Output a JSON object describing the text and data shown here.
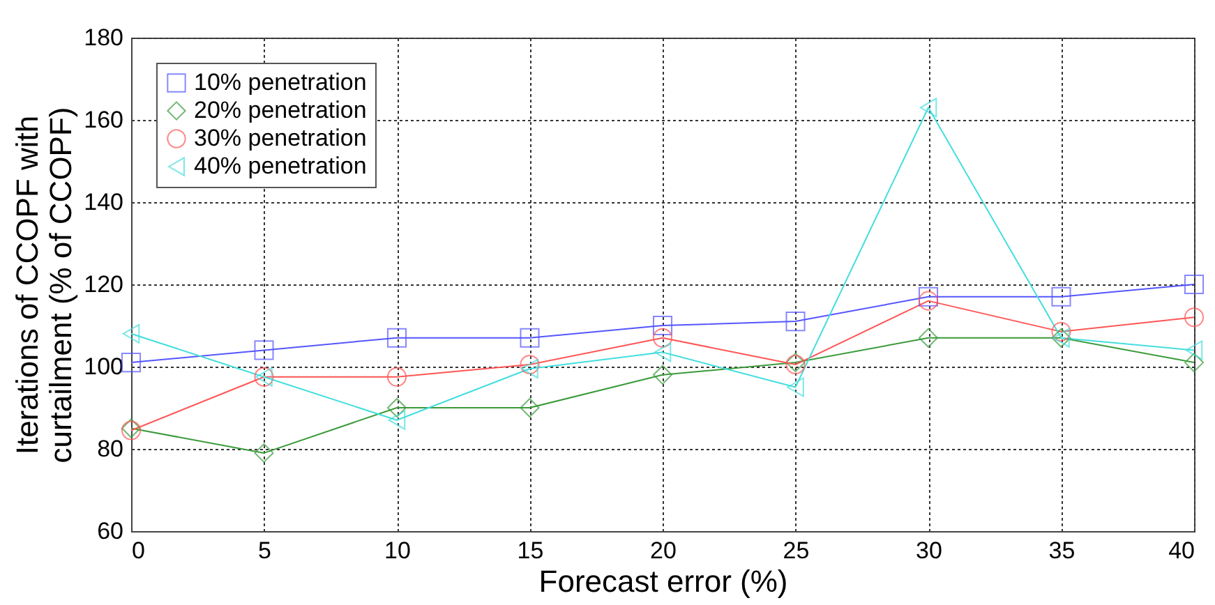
{
  "chart_data": {
    "type": "line",
    "xlabel": "Forecast error (%)",
    "ylabel": "Iterations of CCOPF with\ncurtailment (% of CCOPF)",
    "x": [
      0,
      5,
      10,
      15,
      20,
      25,
      30,
      35,
      40
    ],
    "series": [
      {
        "name": "10% penetration",
        "color": "#5555ff",
        "marker": "square",
        "values": [
          101,
          104,
          107,
          107,
          110,
          111,
          117,
          117,
          120
        ]
      },
      {
        "name": "20% penetration",
        "color": "#3a9a3a",
        "marker": "diamond",
        "values": [
          85,
          79,
          90,
          90,
          98,
          101,
          107,
          107,
          101
        ]
      },
      {
        "name": "30% penetration",
        "color": "#ff5555",
        "marker": "circle",
        "values": [
          84.5,
          97.5,
          97.5,
          100.5,
          107,
          100.5,
          116,
          108.5,
          112
        ]
      },
      {
        "name": "40% penetration",
        "color": "#44dddd",
        "marker": "triangle",
        "values": [
          108,
          97.5,
          87,
          99.5,
          103.5,
          95,
          163,
          107,
          104
        ]
      }
    ],
    "xlim": [
      0,
      40
    ],
    "xticks": [
      0,
      5,
      10,
      15,
      20,
      25,
      30,
      35,
      40
    ],
    "ylim": [
      60,
      180
    ],
    "yticks": [
      60,
      80,
      100,
      120,
      140,
      160,
      180
    ],
    "grid": true,
    "legend": "top left"
  }
}
